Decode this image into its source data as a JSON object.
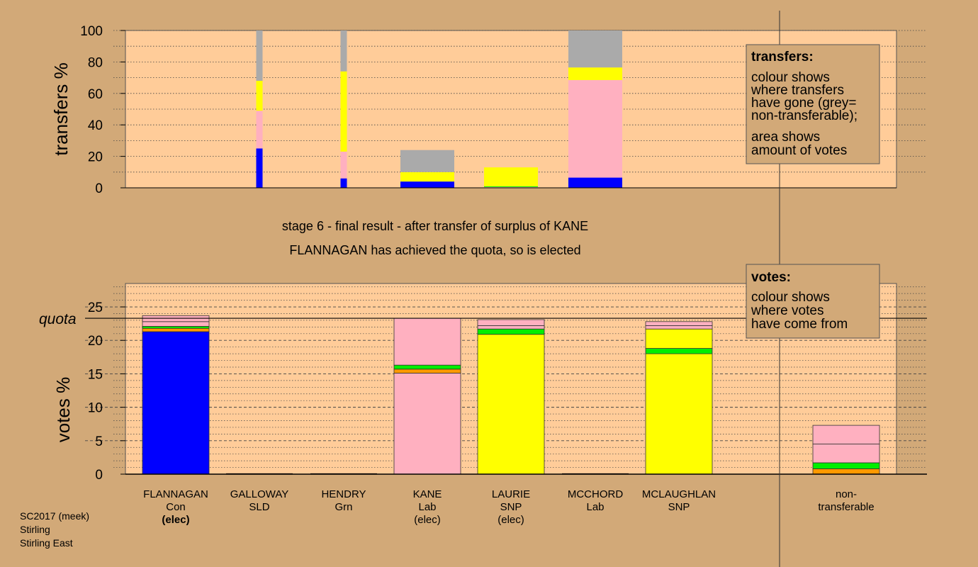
{
  "captions": {
    "stage": "stage 6 - final result - after transfer of surplus of KANE",
    "result": "FLANNAGAN has achieved the quota, so is elected"
  },
  "footer": [
    "SC2017 (meek)",
    "Stirling",
    "Stirling East"
  ],
  "legend_transfers": {
    "title": "transfers:",
    "lines1": [
      "colour shows",
      "where transfers",
      "have gone (grey=",
      "non-transferable);"
    ],
    "lines2": [
      "area shows",
      "amount of votes"
    ]
  },
  "legend_votes": {
    "title": "votes:",
    "lines": [
      "colour shows",
      "where votes",
      "have come from"
    ]
  },
  "colors": {
    "background": "#d2a978",
    "plot": "#ffcc99",
    "Con": "#0000ff",
    "Lab": "#ffb0c0",
    "SNP": "#ffff00",
    "Grn": "#00ee00",
    "SLD": "#ff9900",
    "nontransferable": "#aaaaaa"
  },
  "chart_data": [
    {
      "type": "bar",
      "name": "transfers",
      "ylabel": "transfers %",
      "ylim": [
        0,
        100
      ],
      "yticks": [
        0,
        20,
        40,
        60,
        80,
        100
      ],
      "grid": true,
      "columns": [
        {
          "slot": 1,
          "width": "narrow",
          "segments": [
            {
              "party": "Con",
              "value": 25
            },
            {
              "party": "Lab",
              "value": 24
            },
            {
              "party": "SNP",
              "value": 19
            },
            {
              "party": "nontransferable",
              "value": 32
            }
          ]
        },
        {
          "slot": 2,
          "width": "narrow",
          "segments": [
            {
              "party": "Con",
              "value": 6
            },
            {
              "party": "Lab",
              "value": 17
            },
            {
              "party": "SNP",
              "value": 51
            },
            {
              "party": "nontransferable",
              "value": 26
            }
          ]
        },
        {
          "slot": 3,
          "width": "wide",
          "segments": [
            {
              "party": "Con",
              "value": 4
            },
            {
              "party": "SNP",
              "value": 6
            },
            {
              "party": "nontransferable",
              "value": 14
            }
          ]
        },
        {
          "slot": 4,
          "width": "wide",
          "segments": [
            {
              "party": "Lab",
              "value": 0.5
            },
            {
              "party": "Grn",
              "value": 0.5
            },
            {
              "party": "SNP",
              "value": 12
            }
          ]
        },
        {
          "slot": 5,
          "width": "wide",
          "segments": [
            {
              "party": "Con",
              "value": 6.5
            },
            {
              "party": "Lab",
              "value": 62
            },
            {
              "party": "SNP",
              "value": 8
            },
            {
              "party": "nontransferable",
              "value": 23.5
            }
          ]
        }
      ]
    },
    {
      "type": "bar",
      "name": "votes",
      "ylabel": "votes %",
      "ylim": [
        0,
        28.5
      ],
      "yticks": [
        0,
        5,
        10,
        15,
        20,
        25
      ],
      "quota": 23.3,
      "quota_label": "quota",
      "grid": true,
      "candidates": [
        {
          "name": "FLANNAGAN",
          "party": "Con",
          "status": "(elec)",
          "bold_status": true,
          "segments": [
            {
              "party": "Con",
              "value": 21.3
            },
            {
              "party": "SLD",
              "value": 0.5
            },
            {
              "party": "Grn",
              "value": 0.3
            },
            {
              "party": "Lab",
              "value": 0.7
            },
            {
              "party": "Lab",
              "value": 0.9
            }
          ]
        },
        {
          "name": "GALLOWAY",
          "party": "SLD",
          "status": "",
          "segments": []
        },
        {
          "name": "HENDRY",
          "party": "Grn",
          "status": "",
          "segments": []
        },
        {
          "name": "KANE",
          "party": "Lab",
          "status": "(elec)",
          "segments": [
            {
              "party": "Lab",
              "value": 15.1
            },
            {
              "party": "SLD",
              "value": 0.6
            },
            {
              "party": "Grn",
              "value": 0.6
            },
            {
              "party": "Lab",
              "value": 7.0
            }
          ]
        },
        {
          "name": "LAURIE",
          "party": "SNP",
          "status": "(elec)",
          "segments": [
            {
              "party": "SNP",
              "value": 20.9
            },
            {
              "party": "Grn",
              "value": 0.8
            },
            {
              "party": "Lab",
              "value": 0.5
            },
            {
              "party": "Lab",
              "value": 0.9
            }
          ]
        },
        {
          "name": "MCCHORD",
          "party": "Lab",
          "status": "",
          "segments": []
        },
        {
          "name": "MCLAUGHLAN",
          "party": "SNP",
          "status": "",
          "segments": [
            {
              "party": "SNP",
              "value": 18.0
            },
            {
              "party": "Grn",
              "value": 0.8
            },
            {
              "party": "SNP",
              "value": 2.9
            },
            {
              "party": "Lab",
              "value": 0.5
            },
            {
              "party": "Lab",
              "value": 0.6
            }
          ]
        }
      ],
      "nontransferable": {
        "label": "non-\ntransferable",
        "segments": [
          {
            "party": "SLD",
            "value": 0.8
          },
          {
            "party": "Grn",
            "value": 0.9
          },
          {
            "party": "Lab",
            "value": 2.8
          },
          {
            "party": "Lab",
            "value": 2.8
          }
        ]
      }
    }
  ]
}
